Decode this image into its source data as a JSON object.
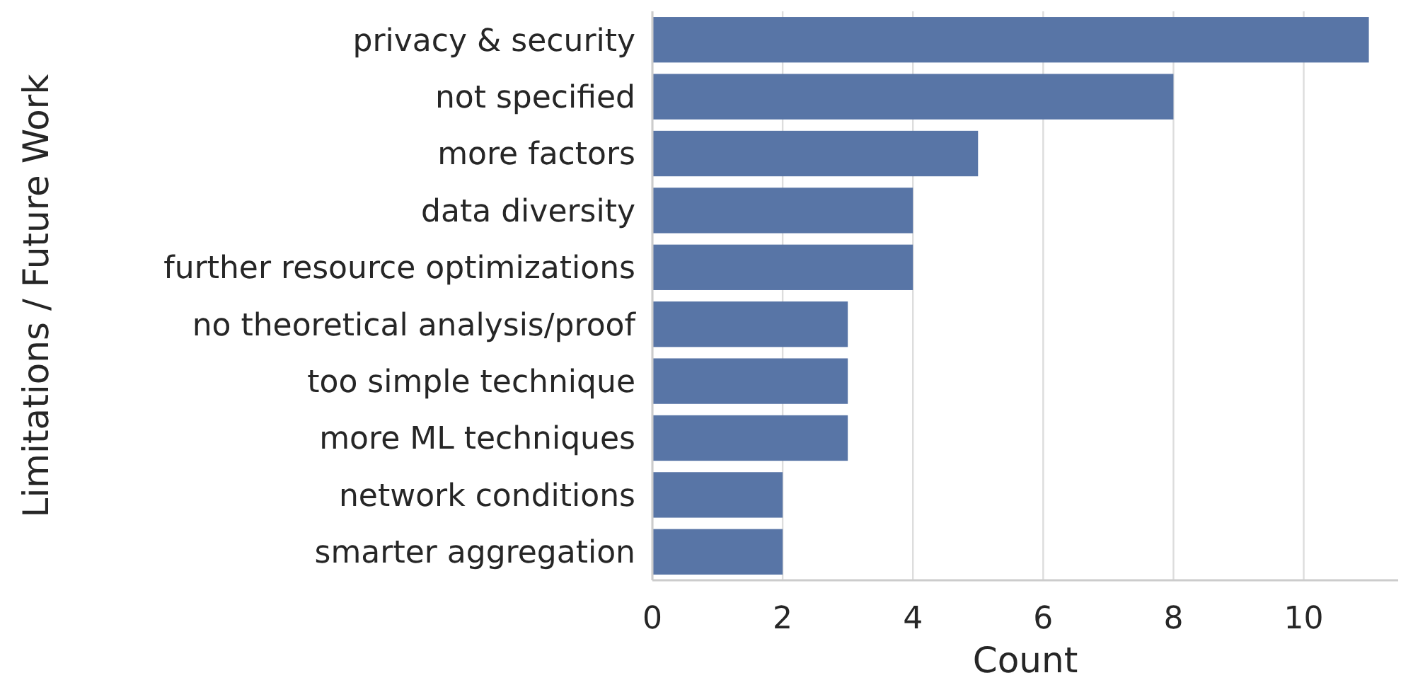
{
  "chart_data": {
    "type": "bar",
    "orientation": "horizontal",
    "xlabel": "Count",
    "ylabel": "Limitations / Future Work",
    "categories": [
      "privacy & security",
      "not specified",
      "more factors",
      "data diversity",
      "further resource optimizations",
      "no theoretical analysis/proof",
      "too simple technique",
      "more ML techniques",
      "network conditions",
      "smarter aggregation"
    ],
    "values": [
      11,
      8,
      5,
      4,
      4,
      3,
      3,
      3,
      2,
      2
    ],
    "color": "#5875a6",
    "xlim": [
      0,
      11.45
    ],
    "xticks": [
      0,
      2,
      4,
      6,
      8,
      10
    ],
    "grid": "x"
  }
}
